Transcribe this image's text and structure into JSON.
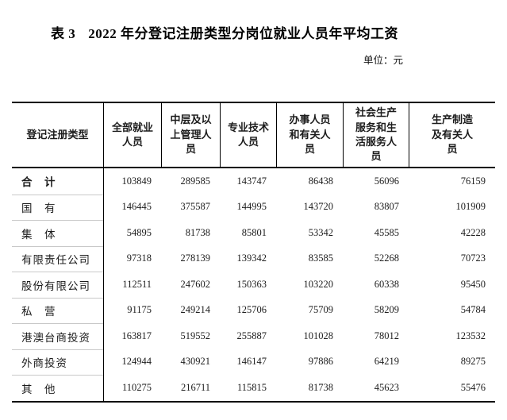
{
  "page": {
    "table_label": "表 3",
    "title": "2022 年分登记注册类型分岗位就业人员年平均工资",
    "unit_note": "单位：元"
  },
  "table": {
    "columns": [
      "登记注册类型",
      "全部就业人员",
      "中层及以上管理人员",
      "专业技术人员",
      "办事人员和有关人员",
      "社会生产服务和生活服务人员",
      "生产制造及有关人员"
    ],
    "rows": [
      {
        "label": "合　计",
        "bold": true,
        "values": [
          103849,
          289585,
          143747,
          86438,
          56096,
          76159
        ]
      },
      {
        "label": "国　有",
        "bold": false,
        "values": [
          146445,
          375587,
          144995,
          143720,
          83807,
          101909
        ]
      },
      {
        "label": "集　体",
        "bold": false,
        "values": [
          54895,
          81738,
          85801,
          53342,
          45585,
          42228
        ]
      },
      {
        "label": "有限责任公司",
        "bold": false,
        "values": [
          97318,
          278139,
          139342,
          83585,
          52268,
          70723
        ]
      },
      {
        "label": "股份有限公司",
        "bold": false,
        "values": [
          112511,
          247602,
          150363,
          103220,
          60338,
          95450
        ]
      },
      {
        "label": "私　营",
        "bold": false,
        "values": [
          91175,
          249214,
          125706,
          75709,
          58209,
          54784
        ]
      },
      {
        "label": "港澳台商投资",
        "bold": false,
        "values": [
          163817,
          519552,
          255887,
          101028,
          78012,
          123532
        ]
      },
      {
        "label": "外商投资",
        "bold": false,
        "values": [
          124944,
          430921,
          146147,
          97886,
          64219,
          89275
        ]
      },
      {
        "label": "其　他",
        "bold": false,
        "values": [
          110275,
          216711,
          115815,
          81738,
          45623,
          55476
        ]
      }
    ]
  },
  "colors": {
    "border": "#000000",
    "row_separator": "#c9c9c9",
    "text": "#1c1c1c"
  }
}
